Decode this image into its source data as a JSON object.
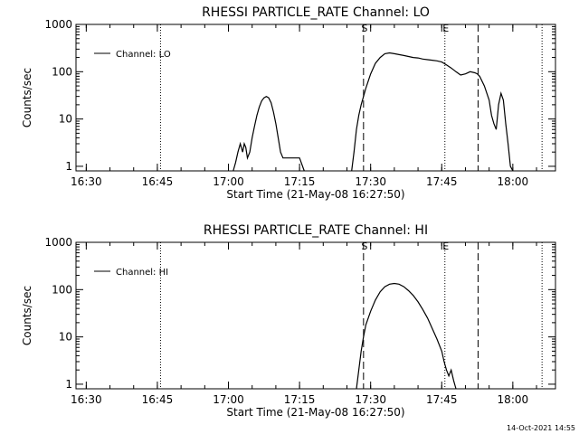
{
  "footer": {
    "timestamp": "14-Oct-2021 14:55"
  },
  "chart_data": [
    {
      "type": "line",
      "title": "RHESSI PARTICLE_RATE Channel: LO",
      "xlabel": "Start Time (21-May-08 16:27:50)",
      "ylabel": "Counts/sec",
      "y_scale": "log",
      "ylim": [
        0.8,
        1000
      ],
      "xlim": [
        "16:27:50",
        "18:09:00"
      ],
      "x_ticks": [
        "16:30",
        "16:45",
        "17:00",
        "17:15",
        "17:30",
        "17:45",
        "18:00"
      ],
      "y_ticks": [
        "1",
        "10",
        "100",
        "1000"
      ],
      "legend": {
        "label": "Channel: LO",
        "position": "top-left"
      },
      "markers": [
        {
          "label": "S",
          "time": "17:28:30",
          "style": "dashed"
        },
        {
          "label": "E",
          "time": "17:45:40",
          "style": "dotted"
        }
      ],
      "vertical_lines": [
        {
          "time": "16:45:40",
          "style": "dotted"
        },
        {
          "time": "17:52:40",
          "style": "dashed"
        },
        {
          "time": "18:06:10",
          "style": "dotted"
        }
      ],
      "series": [
        {
          "segments": [
            {
              "x": [
                "17:01:00",
                "17:01:30",
                "17:02:00",
                "17:02:30",
                "17:03:00",
                "17:03:20",
                "17:03:40",
                "17:04:00",
                "17:04:30",
                "17:05:00",
                "17:05:30",
                "17:06:00",
                "17:06:30",
                "17:07:00",
                "17:07:30",
                "17:08:00",
                "17:08:30",
                "17:09:00",
                "17:09:30",
                "17:10:00",
                "17:10:30",
                "17:11:00",
                "17:11:30",
                "17:12:00",
                "17:12:30",
                "17:13:00",
                "17:14:00",
                "17:15:00",
                "17:16:00"
              ],
              "y": [
                0.8,
                1.2,
                2,
                3,
                2,
                3,
                2.5,
                1.5,
                2,
                4,
                7,
                12,
                18,
                24,
                28,
                30,
                28,
                22,
                14,
                8,
                4,
                2,
                1.5,
                1.5,
                1.5,
                1.5,
                1.5,
                1.5,
                0.8
              ]
            },
            {
              "x": [
                "17:26:00",
                "17:26:30",
                "17:27:00",
                "17:27:30",
                "17:28:00",
                "17:29:00",
                "17:30:00",
                "17:31:00",
                "17:32:00",
                "17:33:00",
                "17:34:00",
                "17:35:00",
                "17:36:00",
                "17:37:00",
                "17:38:00",
                "17:39:00",
                "17:40:00",
                "17:41:00",
                "17:42:00",
                "17:43:00",
                "17:44:00",
                "17:45:00",
                "17:46:00",
                "17:47:00",
                "17:48:00",
                "17:49:00",
                "17:50:00",
                "17:51:00",
                "17:52:00",
                "17:52:30",
                "17:53:00",
                "17:54:00",
                "17:55:00",
                "17:55:30",
                "17:56:00",
                "17:56:30",
                "17:57:00",
                "17:57:30",
                "17:58:00",
                "17:58:30",
                "17:59:00",
                "17:59:30",
                "18:00:00"
              ],
              "y": [
                0.8,
                2,
                6,
                12,
                20,
                45,
                90,
                150,
                200,
                240,
                250,
                240,
                230,
                220,
                210,
                200,
                195,
                185,
                180,
                175,
                170,
                160,
                140,
                120,
                100,
                85,
                90,
                100,
                95,
                90,
                80,
                50,
                25,
                12,
                8,
                6,
                20,
                35,
                25,
                8,
                3,
                1,
                0.8
              ]
            }
          ]
        }
      ]
    },
    {
      "type": "line",
      "title": "RHESSI PARTICLE_RATE Channel: HI",
      "xlabel": "Start Time (21-May-08 16:27:50)",
      "ylabel": "Counts/sec",
      "y_scale": "log",
      "ylim": [
        0.8,
        1000
      ],
      "xlim": [
        "16:27:50",
        "18:09:00"
      ],
      "x_ticks": [
        "16:30",
        "16:45",
        "17:00",
        "17:15",
        "17:30",
        "17:45",
        "18:00"
      ],
      "y_ticks": [
        "1",
        "10",
        "100",
        "1000"
      ],
      "legend": {
        "label": "Channel: HI",
        "position": "top-left"
      },
      "markers": [
        {
          "label": "S",
          "time": "17:28:30",
          "style": "dashed"
        },
        {
          "label": "E",
          "time": "17:45:40",
          "style": "dotted"
        }
      ],
      "vertical_lines": [
        {
          "time": "16:45:40",
          "style": "dotted"
        },
        {
          "time": "17:52:40",
          "style": "dashed"
        },
        {
          "time": "18:06:10",
          "style": "dotted"
        }
      ],
      "series": [
        {
          "segments": [
            {
              "x": [
                "17:27:00",
                "17:27:30",
                "17:28:00",
                "17:28:30",
                "17:29:00",
                "17:30:00",
                "17:31:00",
                "17:32:00",
                "17:33:00",
                "17:34:00",
                "17:35:00",
                "17:36:00",
                "17:37:00",
                "17:38:00",
                "17:39:00",
                "17:40:00",
                "17:41:00",
                "17:42:00",
                "17:43:00",
                "17:44:00",
                "17:45:00",
                "17:45:30",
                "17:46:00",
                "17:46:30",
                "17:47:00",
                "17:47:30",
                "17:48:00"
              ],
              "y": [
                0.8,
                2,
                5,
                10,
                18,
                35,
                60,
                90,
                115,
                130,
                135,
                130,
                115,
                95,
                75,
                55,
                38,
                25,
                15,
                9,
                5,
                3,
                2,
                1.5,
                2,
                1.2,
                0.8
              ]
            }
          ]
        }
      ]
    }
  ]
}
